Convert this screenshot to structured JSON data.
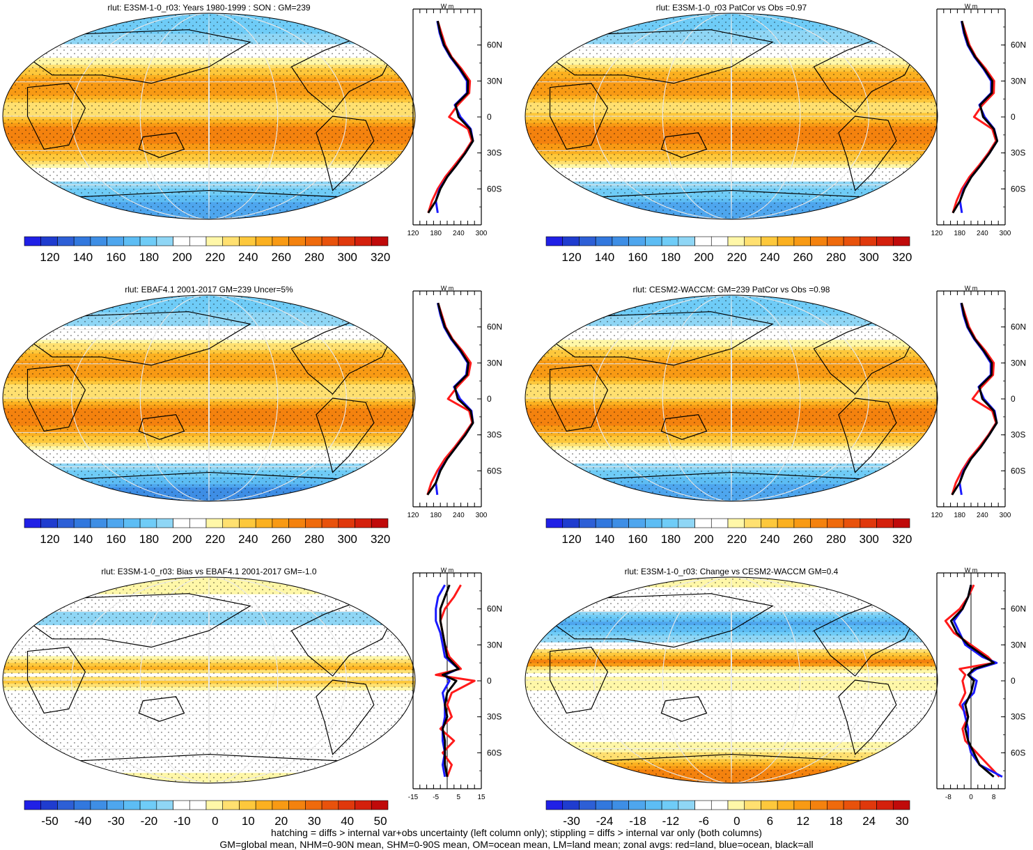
{
  "footer": {
    "line1": "hatching = diffs > internal var+obs uncertainty (left column only); stippling = diffs > internal var only (both columns)",
    "line2": "GM=global mean, NHM=0-90N mean, SHM=0-90S mean, OM=ocean mean, LM=land mean; zonal avgs: red=land, blue=ocean, black=all"
  },
  "colors": {
    "land": "#ff1a1a",
    "ocean": "#1a1aff",
    "all": "#000000"
  },
  "chart_data": [
    {
      "type": "heatmap",
      "title": "rlut: E3SM-1-0_r03: Years 1980-1999 : SON : GM=239",
      "colorbar_labels": [
        "120",
        "140",
        "160",
        "180",
        "200",
        "220",
        "240",
        "260",
        "280",
        "300",
        "320"
      ],
      "colorbar_range": [
        110,
        330
      ],
      "zonal": {
        "unit": "W m",
        "xtick_labels": [
          "120",
          "180",
          "240",
          "300"
        ],
        "xlim": [
          120,
          300
        ],
        "ytick_labels": [
          "60N",
          "30N",
          "0",
          "30S",
          "60S"
        ],
        "ylim": [
          -90,
          90
        ],
        "lat": [
          -80,
          -70,
          -60,
          -50,
          -40,
          -30,
          -20,
          -10,
          0,
          10,
          20,
          30,
          40,
          50,
          60,
          70,
          80
        ],
        "land": [
          160,
          170,
          185,
          205,
          230,
          255,
          275,
          265,
          215,
          238,
          268,
          270,
          248,
          222,
          205,
          195,
          185
        ],
        "ocean": [
          185,
          180,
          190,
          210,
          235,
          258,
          278,
          272,
          245,
          230,
          262,
          262,
          242,
          218,
          200,
          190,
          184
        ],
        "all": [
          160,
          180,
          192,
          210,
          235,
          258,
          278,
          270,
          240,
          232,
          264,
          265,
          244,
          220,
          202,
          192,
          185
        ]
      }
    },
    {
      "type": "heatmap",
      "title": "rlut: E3SM-1-0_r03 PatCor vs Obs =0.97",
      "colorbar_labels": [
        "120",
        "140",
        "160",
        "180",
        "200",
        "220",
        "240",
        "260",
        "280",
        "300",
        "320"
      ],
      "colorbar_range": [
        110,
        330
      ],
      "zonal": {
        "unit": "W m",
        "xtick_labels": [
          "120",
          "180",
          "240",
          "300"
        ],
        "xlim": [
          120,
          300
        ],
        "ytick_labels": [
          "60N",
          "30N",
          "0",
          "30S",
          "60S"
        ],
        "ylim": [
          -90,
          90
        ],
        "lat": [
          -80,
          -70,
          -60,
          -50,
          -40,
          -30,
          -20,
          -10,
          0,
          10,
          20,
          30,
          40,
          50,
          60,
          70,
          80
        ],
        "land": [
          162,
          172,
          186,
          206,
          232,
          256,
          276,
          266,
          218,
          240,
          270,
          271,
          249,
          223,
          206,
          196,
          186
        ],
        "ocean": [
          186,
          181,
          191,
          211,
          236,
          259,
          279,
          271,
          246,
          232,
          263,
          263,
          243,
          219,
          201,
          191,
          185
        ],
        "all": [
          162,
          181,
          193,
          211,
          236,
          259,
          279,
          270,
          242,
          234,
          265,
          266,
          245,
          221,
          203,
          193,
          186
        ]
      }
    },
    {
      "type": "heatmap",
      "title": "rlut: EBAF4.1 2001-2017 GM=239 Uncer=5%",
      "colorbar_labels": [
        "120",
        "140",
        "160",
        "180",
        "200",
        "220",
        "240",
        "260",
        "280",
        "300",
        "320"
      ],
      "colorbar_range": [
        110,
        330
      ],
      "zonal": {
        "unit": "W m",
        "xtick_labels": [
          "120",
          "180",
          "240",
          "300"
        ],
        "xlim": [
          120,
          300
        ],
        "ytick_labels": [
          "60N",
          "30N",
          "0",
          "30S",
          "60S"
        ],
        "ylim": [
          -90,
          90
        ],
        "lat": [
          -80,
          -70,
          -60,
          -50,
          -40,
          -30,
          -20,
          -10,
          0,
          10,
          20,
          30,
          40,
          50,
          60,
          70,
          80
        ],
        "land": [
          158,
          168,
          184,
          204,
          230,
          254,
          276,
          268,
          212,
          236,
          266,
          272,
          250,
          224,
          206,
          196,
          186
        ],
        "ocean": [
          184,
          180,
          190,
          210,
          234,
          258,
          278,
          274,
          244,
          228,
          260,
          264,
          244,
          220,
          202,
          192,
          185
        ],
        "all": [
          158,
          180,
          192,
          210,
          234,
          258,
          278,
          272,
          238,
          230,
          262,
          266,
          246,
          222,
          204,
          194,
          186
        ]
      }
    },
    {
      "type": "heatmap",
      "title": "rlut: CESM2-WACCM: GM=239 PatCor vs Obs =0.98",
      "colorbar_labels": [
        "120",
        "140",
        "160",
        "180",
        "200",
        "220",
        "240",
        "260",
        "280",
        "300",
        "320"
      ],
      "colorbar_range": [
        110,
        330
      ],
      "zonal": {
        "unit": "W m",
        "xtick_labels": [
          "120",
          "180",
          "240",
          "300"
        ],
        "xlim": [
          120,
          300
        ],
        "ytick_labels": [
          "60N",
          "30N",
          "0",
          "30S",
          "60S"
        ],
        "ylim": [
          -90,
          90
        ],
        "lat": [
          -80,
          -70,
          -60,
          -50,
          -40,
          -30,
          -20,
          -10,
          0,
          10,
          20,
          30,
          40,
          50,
          60,
          70,
          80
        ],
        "land": [
          160,
          170,
          186,
          206,
          232,
          256,
          276,
          266,
          214,
          238,
          268,
          270,
          248,
          222,
          205,
          195,
          185
        ],
        "ocean": [
          185,
          180,
          190,
          210,
          236,
          258,
          278,
          272,
          244,
          230,
          262,
          262,
          242,
          218,
          200,
          190,
          184
        ],
        "all": [
          160,
          180,
          192,
          210,
          236,
          258,
          278,
          270,
          240,
          232,
          264,
          265,
          244,
          220,
          202,
          192,
          185
        ]
      }
    },
    {
      "type": "heatmap",
      "title": "rlut: E3SM-1-0_r03: Bias vs EBAF4.1 2001-2017  GM=-1.0",
      "colorbar_labels": [
        "-50",
        "-40",
        "-30",
        "-20",
        "-10",
        "0",
        "10",
        "20",
        "30",
        "40",
        "50"
      ],
      "colorbar_range": [
        -55,
        55
      ],
      "zonal": {
        "unit": "W m",
        "xtick_labels": [
          "-15",
          "-5",
          "5",
          "15"
        ],
        "xlim": [
          -15,
          15
        ],
        "zero_line": true,
        "ytick_labels": [
          "60N",
          "30N",
          "0",
          "30S",
          "60S"
        ],
        "ylim": [
          -90,
          90
        ],
        "lat": [
          -80,
          -70,
          -60,
          -50,
          -40,
          -30,
          -20,
          -10,
          0,
          5,
          10,
          20,
          30,
          40,
          50,
          60,
          70,
          80
        ],
        "land": [
          0,
          2,
          -2,
          3,
          -3,
          2,
          0,
          2,
          12,
          -5,
          6,
          1,
          -1,
          -2,
          -3,
          -1,
          3,
          6
        ],
        "ocean": [
          -1,
          -2,
          -1,
          -2,
          -2,
          -1,
          -1,
          -2,
          1,
          -1,
          5,
          -1,
          -2,
          -3,
          -5,
          -5,
          -4,
          -1
        ],
        "all": [
          0,
          -1,
          -1,
          -1,
          -2,
          0,
          -1,
          0,
          4,
          -2,
          5,
          0,
          -1,
          -2,
          -3,
          -3,
          -1,
          1
        ]
      }
    },
    {
      "type": "heatmap",
      "title": "rlut: E3SM-1-0_r03: Change vs CESM2-WACCM GM=0.4",
      "colorbar_labels": [
        "-30",
        "-24",
        "-18",
        "-12",
        "-6",
        "0",
        "6",
        "12",
        "18",
        "24",
        "30"
      ],
      "colorbar_range": [
        -33,
        33
      ],
      "zonal": {
        "unit": "W m",
        "xtick_labels": [
          "-8",
          "0",
          "8"
        ],
        "xlim": [
          -12,
          12
        ],
        "zero_line": true,
        "ytick_labels": [
          "60N",
          "30N",
          "0",
          "30S",
          "60S"
        ],
        "ylim": [
          -90,
          90
        ],
        "lat": [
          -80,
          -70,
          -60,
          -50,
          -40,
          -30,
          -20,
          -10,
          0,
          5,
          10,
          15,
          20,
          30,
          40,
          50,
          60,
          70,
          80
        ],
        "land": [
          10,
          6,
          2,
          -2,
          -3,
          -1,
          -4,
          -2,
          -3,
          -2,
          -4,
          8,
          6,
          0,
          -6,
          -9,
          -4,
          -1,
          1
        ],
        "ocean": [
          11,
          3,
          0,
          -1,
          -1,
          -2,
          -3,
          1,
          2,
          -1,
          2,
          9,
          4,
          -2,
          -4,
          -6,
          -3,
          -1,
          0
        ],
        "all": [
          8,
          3,
          1,
          -1,
          -2,
          -1,
          -2,
          0,
          1,
          -1,
          1,
          8,
          5,
          -1,
          -5,
          -7,
          -3,
          -1,
          0
        ]
      }
    }
  ]
}
